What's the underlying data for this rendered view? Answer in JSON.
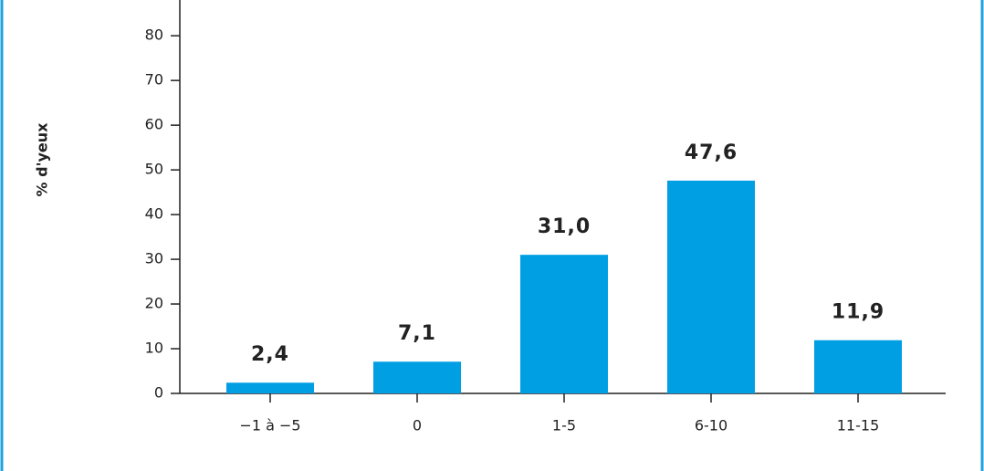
{
  "chart_data": {
    "type": "bar",
    "y_label": "% d'yeux",
    "categories": [
      "−1 à −5",
      "0",
      "1-5",
      "6-10",
      "11-15"
    ],
    "values": [
      2.4,
      7.1,
      31.0,
      47.6,
      11.9
    ],
    "value_labels": [
      "2,4",
      "7,1",
      "31,0",
      "47,6",
      "11,9"
    ],
    "color": "#009fe3",
    "ylim": [
      0,
      88
    ],
    "yticks": [
      0,
      10,
      20,
      30,
      40,
      50,
      60,
      70,
      80
    ]
  }
}
